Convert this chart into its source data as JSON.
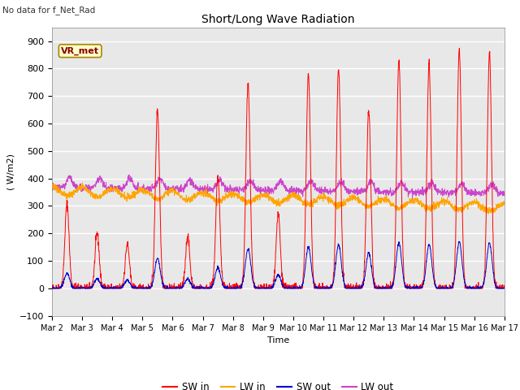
{
  "title": "Short/Long Wave Radiation",
  "subtitle": "No data for f_Net_Rad",
  "xlabel": "Time",
  "ylabel": "( W/m2)",
  "ylim": [
    -100,
    950
  ],
  "yticks": [
    -100,
    0,
    100,
    200,
    300,
    400,
    500,
    600,
    700,
    800,
    900
  ],
  "xtick_labels": [
    "Mar 2",
    "Mar 3",
    "Mar 4",
    "Mar 5",
    "Mar 6",
    "Mar 7",
    "Mar 8",
    "Mar 9",
    "Mar 10",
    "Mar 11",
    "Mar 12",
    "Mar 13",
    "Mar 14",
    "Mar 15",
    "Mar 16",
    "Mar 17"
  ],
  "legend_labels": [
    "SW in",
    "LW in",
    "SW out",
    "LW out"
  ],
  "bg_color": "#e8e8e8",
  "vr_met_box_color": "#ffffcc",
  "vr_met_border_color": "#aa8800",
  "vr_met_text_color": "#880000",
  "sw_in_color": "#ff0000",
  "lw_in_color": "#ffa500",
  "sw_out_color": "#0000cc",
  "lw_out_color": "#cc44cc",
  "n_days": 15,
  "samples_per_day": 144,
  "peak_vals": [
    310,
    200,
    160,
    650,
    190,
    410,
    750,
    270,
    780,
    800,
    650,
    830,
    820,
    870,
    860
  ],
  "sw_out_peaks": [
    55,
    35,
    30,
    110,
    35,
    75,
    145,
    50,
    150,
    160,
    130,
    165,
    160,
    170,
    165
  ]
}
